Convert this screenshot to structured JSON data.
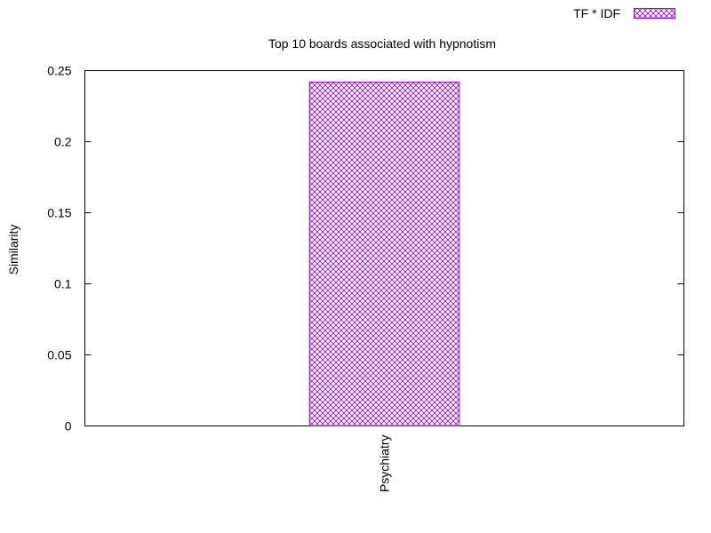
{
  "chart_data": {
    "type": "bar",
    "title": "Top 10 boards associated with hypnotism",
    "xlabel": "",
    "ylabel": "Similarity",
    "categories": [
      "Psychiatry"
    ],
    "series": [
      {
        "name": "TF * IDF",
        "values": [
          0.242
        ],
        "color": "#9400d3",
        "pattern": "crosshatch"
      }
    ],
    "ylim": [
      0,
      0.25
    ],
    "yticks": [
      0,
      0.05,
      0.1,
      0.15,
      0.2,
      0.25
    ],
    "ytick_labels": [
      "0",
      "0.05",
      "0.1",
      "0.15",
      "0.2",
      "0.25"
    ],
    "grid": false,
    "legend_position": "top-right"
  }
}
